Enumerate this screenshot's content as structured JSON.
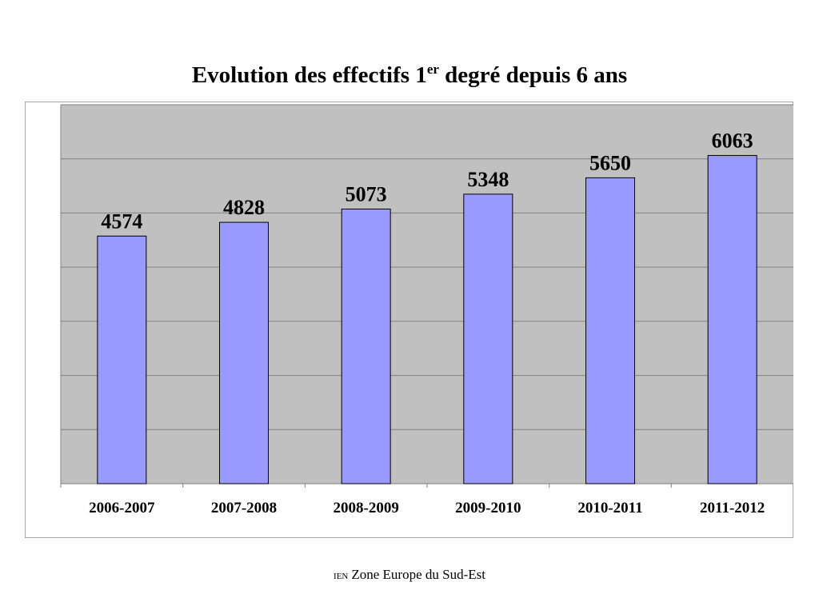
{
  "title": {
    "main": "Evolution des effectifs 1",
    "superscript": "er",
    "rest": " degré depuis 6 ans"
  },
  "footer": {
    "prefix": "IEN",
    "text": "Zone Europe du Sud-Est"
  },
  "chart_data": {
    "type": "bar",
    "title": "Evolution des effectifs 1er degré depuis 6 ans",
    "categories": [
      "2006-2007",
      "2007-2008",
      "2008-2009",
      "2009-2010",
      "2010-2011",
      "2011-2012"
    ],
    "values": [
      4574,
      4828,
      5073,
      5348,
      5650,
      6063
    ],
    "ylim": [
      0,
      7000
    ],
    "ytick_step": 1000,
    "grid": true,
    "data_labels": true,
    "colors": {
      "plot_background": "#c0c0c0",
      "bar_fill": "#9999ff",
      "bar_stroke": "#000000",
      "gridline": "#808080"
    }
  }
}
